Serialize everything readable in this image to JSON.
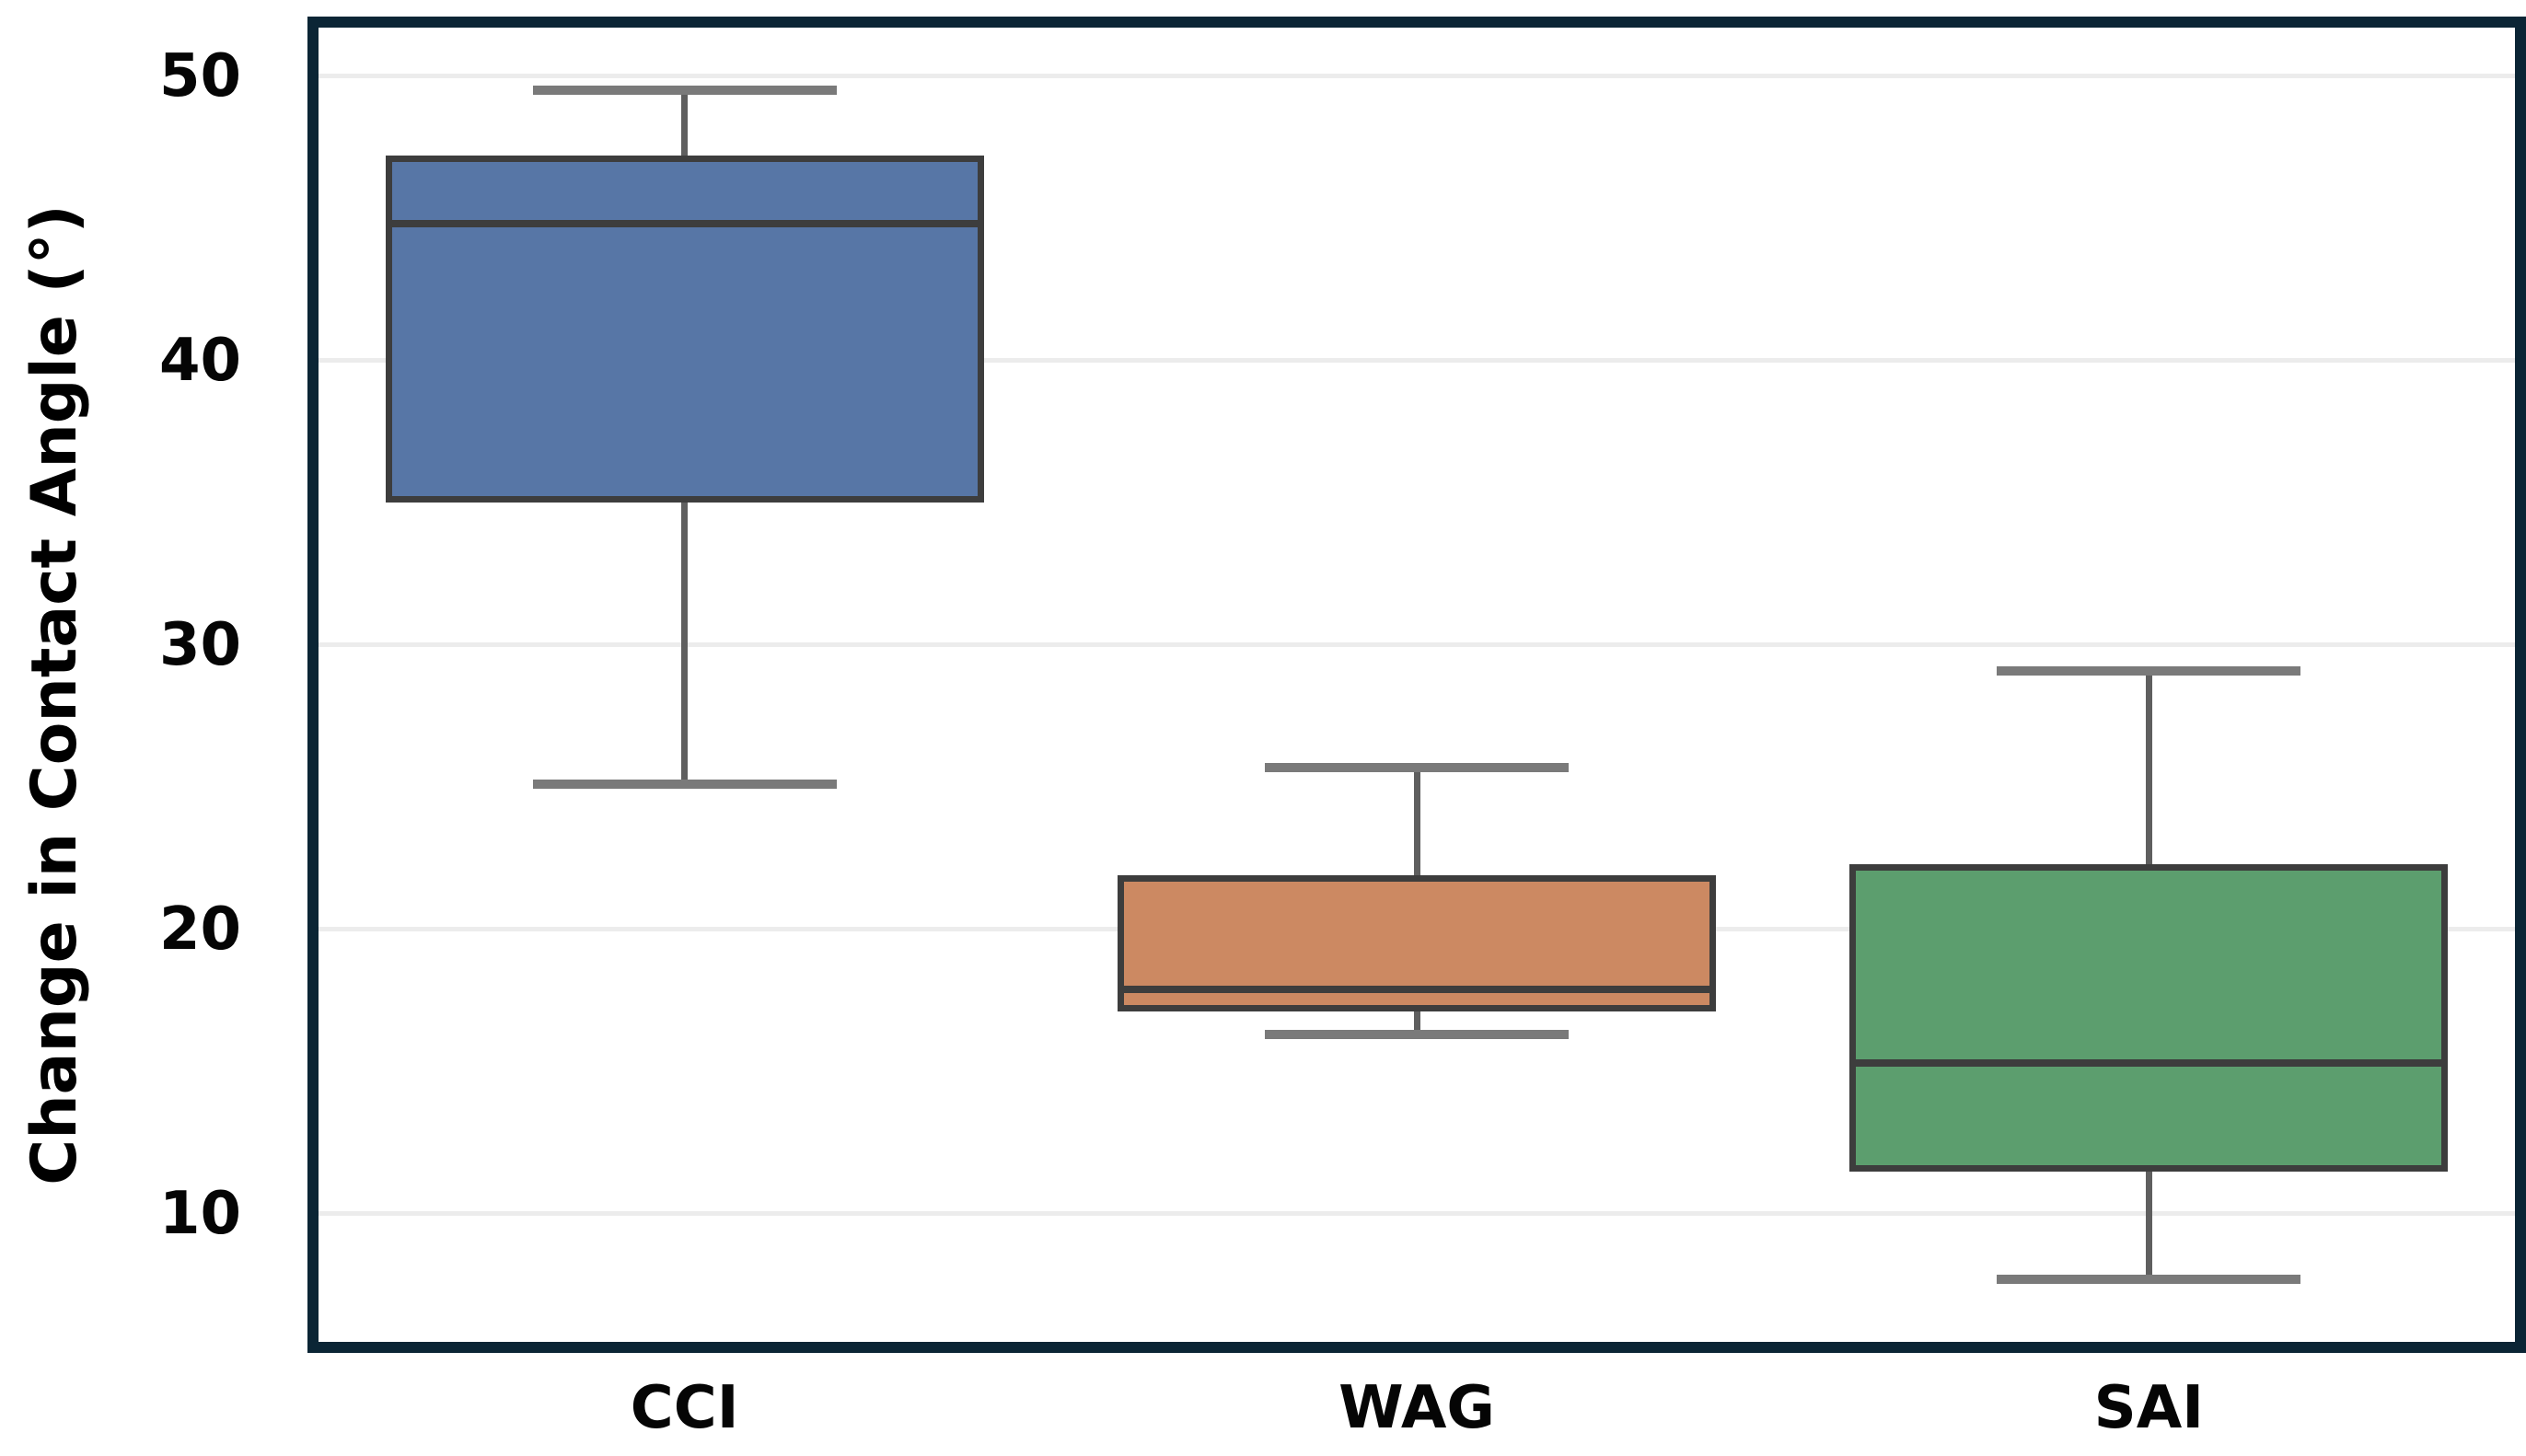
{
  "chart_data": {
    "type": "box",
    "title": "",
    "xlabel": "",
    "ylabel": "Change in Contact Angle (°)",
    "categories": [
      "CCI",
      "WAG",
      "SAI"
    ],
    "yticks": [
      10,
      20,
      30,
      40,
      50
    ],
    "ylim": [
      5.5,
      51.7
    ],
    "grid": "horizontal-light",
    "legend": "none",
    "series": [
      {
        "name": "CCI",
        "color": "#5776A6",
        "whisker_low": 25.1,
        "q1": 35.0,
        "median": 44.8,
        "q3": 47.2,
        "whisker_high": 49.5
      },
      {
        "name": "WAG",
        "color": "#CC8962",
        "whisker_low": 16.3,
        "q1": 17.1,
        "median": 17.9,
        "q3": 21.9,
        "whisker_high": 25.7
      },
      {
        "name": "SAI",
        "color": "#5C9E6E",
        "whisker_low": 7.7,
        "q1": 11.5,
        "median": 15.3,
        "q3": 22.3,
        "whisker_high": 29.1
      }
    ],
    "style": {
      "frame_color": "#0b2535",
      "gridline_color": "#ececec",
      "box_edge_color": "#3d3d3d",
      "whisker_color": "#5f5f5f",
      "cap_color": "#7a7a7a",
      "background": "#ffffff"
    }
  }
}
